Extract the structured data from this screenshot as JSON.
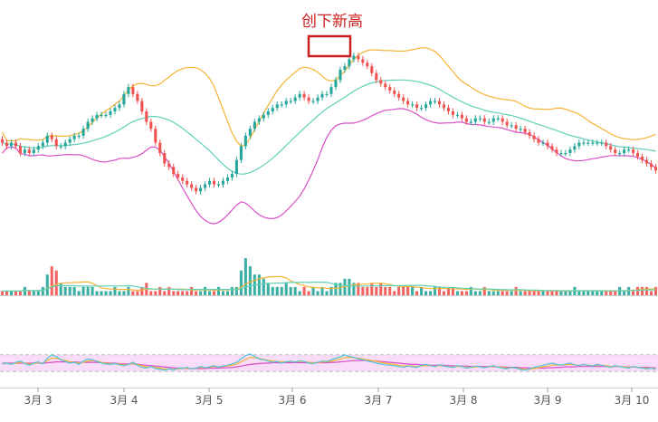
{
  "chart_data": {
    "type": "candlestick",
    "annotation": "创下新高",
    "x_ticks": [
      "3月 3",
      "3月 4",
      "3月 5",
      "3月 6",
      "3月 7",
      "3月 8",
      "3月 9",
      "3月 10"
    ],
    "colors": {
      "up": "#26a69a",
      "down": "#ef5350",
      "bb_upper": "#f5b335",
      "bb_middle": "#5fd1b8",
      "bb_lower": "#d94fc9",
      "rsi_band": "#f5d0f5",
      "rsi_fast": "#4fc3d9",
      "rsi_mid": "#f5b335",
      "rsi_slow": "#d94fc9",
      "annotation": "#cc1f1f"
    },
    "candles": {
      "open": [
        200,
        199,
        198,
        199,
        198,
        196,
        197,
        196,
        197,
        198,
        199,
        201,
        200,
        198,
        198,
        199,
        200,
        201,
        201,
        203,
        205,
        206,
        207,
        207,
        207,
        208,
        209,
        210,
        213,
        215,
        213,
        211,
        208,
        205,
        203,
        199,
        196,
        193,
        192,
        190,
        189,
        188,
        187,
        186,
        185,
        186,
        187,
        188,
        187,
        187,
        188,
        189,
        190,
        194,
        198,
        201,
        203,
        205,
        206,
        207,
        208,
        209,
        210,
        210,
        211,
        211,
        212,
        213,
        212,
        211,
        211,
        212,
        213,
        213,
        215,
        217,
        220,
        221,
        223,
        224,
        223,
        222,
        221,
        219,
        217,
        216,
        215,
        214,
        213,
        212,
        211,
        210,
        210,
        209,
        209,
        210,
        211,
        211,
        210,
        209,
        208,
        207,
        207,
        206,
        205,
        205,
        206,
        206,
        205,
        205,
        206,
        206,
        205,
        204,
        204,
        203,
        203,
        202,
        201,
        200,
        199,
        199,
        198,
        197,
        196,
        196,
        196,
        197,
        198,
        199,
        199,
        199,
        199,
        199,
        199,
        198,
        197,
        196,
        196,
        197,
        197,
        196,
        195,
        194,
        193,
        192
      ],
      "close": [
        199,
        198,
        199,
        198,
        196,
        197,
        196,
        197,
        198,
        199,
        201,
        200,
        198,
        198,
        199,
        200,
        201,
        201,
        203,
        205,
        206,
        207,
        207,
        207,
        208,
        209,
        210,
        213,
        215,
        213,
        211,
        208,
        205,
        203,
        199,
        196,
        193,
        192,
        190,
        189,
        188,
        187,
        186,
        185,
        186,
        187,
        188,
        187,
        187,
        188,
        189,
        190,
        194,
        198,
        201,
        203,
        205,
        206,
        207,
        208,
        209,
        210,
        210,
        211,
        211,
        212,
        213,
        212,
        211,
        211,
        212,
        213,
        213,
        215,
        217,
        220,
        221,
        223,
        224,
        223,
        222,
        221,
        219,
        217,
        216,
        215,
        214,
        213,
        212,
        211,
        210,
        210,
        209,
        209,
        210,
        211,
        211,
        210,
        209,
        208,
        207,
        207,
        206,
        205,
        205,
        206,
        206,
        205,
        205,
        206,
        206,
        205,
        204,
        204,
        203,
        203,
        202,
        201,
        200,
        199,
        199,
        198,
        197,
        196,
        196,
        196,
        197,
        198,
        199,
        199,
        199,
        199,
        199,
        199,
        198,
        197,
        196,
        196,
        197,
        197,
        196,
        195,
        194,
        193,
        192,
        191
      ]
    },
    "volume": [
      1,
      1,
      1,
      1,
      1,
      2,
      1,
      1,
      1,
      2,
      5,
      7,
      6,
      3,
      2,
      2,
      2,
      1,
      2,
      2,
      2,
      1,
      1,
      1,
      1,
      2,
      1,
      1,
      2,
      1,
      1,
      2,
      3,
      1,
      1,
      2,
      1,
      2,
      1,
      1,
      1,
      1,
      2,
      1,
      1,
      2,
      1,
      1,
      2,
      1,
      1,
      2,
      2,
      6,
      9,
      7,
      5,
      5,
      4,
      3,
      2,
      2,
      2,
      3,
      2,
      2,
      1,
      2,
      1,
      2,
      1,
      2,
      1,
      2,
      3,
      3,
      4,
      4,
      3,
      3,
      2,
      2,
      3,
      2,
      3,
      2,
      2,
      1,
      2,
      2,
      2,
      2,
      1,
      2,
      1,
      1,
      2,
      2,
      1,
      2,
      2,
      1,
      1,
      1,
      2,
      1,
      1,
      2,
      1,
      1,
      1,
      1,
      1,
      1,
      2,
      1,
      1,
      1,
      1,
      1,
      1,
      1,
      1,
      1,
      1,
      1,
      1,
      2,
      1,
      1,
      1,
      1,
      1,
      1,
      1,
      1,
      1,
      2,
      1,
      2,
      1,
      2,
      2,
      2,
      1,
      2
    ],
    "rsi": {
      "fast": [
        48,
        50,
        47,
        52,
        55,
        49,
        45,
        50,
        53,
        48,
        62,
        70,
        66,
        58,
        54,
        50,
        52,
        47,
        55,
        60,
        58,
        54,
        50,
        48,
        47,
        49,
        46,
        44,
        47,
        52,
        45,
        40,
        38,
        42,
        37,
        35,
        33,
        36,
        34,
        38,
        37,
        40,
        36,
        38,
        42,
        39,
        41,
        44,
        40,
        43,
        45,
        48,
        52,
        60,
        68,
        72,
        66,
        60,
        58,
        55,
        52,
        54,
        50,
        53,
        55,
        52,
        56,
        54,
        50,
        49,
        52,
        55,
        54,
        58,
        62,
        65,
        70,
        66,
        64,
        60,
        58,
        55,
        53,
        50,
        48,
        46,
        45,
        44,
        42,
        40,
        43,
        41,
        40,
        45,
        47,
        44,
        42,
        46,
        43,
        41,
        40,
        44,
        42,
        38,
        40,
        43,
        41,
        39,
        42,
        44,
        40,
        38,
        36,
        40,
        38,
        35,
        33,
        36,
        40,
        42,
        45,
        48,
        50,
        47,
        45,
        48,
        50,
        46,
        44,
        47,
        45,
        43,
        47,
        45,
        42,
        40,
        44,
        42,
        40,
        38,
        42,
        40,
        38,
        36,
        38,
        35
      ],
      "mid": [
        49,
        49,
        48,
        50,
        52,
        50,
        48,
        49,
        51,
        50,
        56,
        62,
        62,
        59,
        56,
        53,
        52,
        50,
        52,
        55,
        56,
        55,
        52,
        50,
        49,
        49,
        48,
        46,
        47,
        49,
        47,
        44,
        41,
        42,
        40,
        38,
        36,
        36,
        35,
        36,
        37,
        38,
        37,
        38,
        40,
        39,
        40,
        42,
        41,
        42,
        43,
        45,
        48,
        53,
        59,
        64,
        63,
        61,
        59,
        57,
        55,
        54,
        53,
        53,
        54,
        53,
        54,
        54,
        52,
        51,
        51,
        53,
        53,
        55,
        57,
        60,
        63,
        64,
        63,
        62,
        60,
        58,
        56,
        54,
        52,
        50,
        48,
        47,
        45,
        44,
        44,
        43,
        42,
        43,
        44,
        44,
        43,
        44,
        43,
        42,
        41,
        42,
        42,
        40,
        40,
        41,
        41,
        40,
        41,
        42,
        41,
        40,
        38,
        39,
        38,
        37,
        35,
        35,
        37,
        39,
        41,
        43,
        45,
        46,
        45,
        46,
        47,
        46,
        45,
        46,
        45,
        44,
        45,
        45,
        44,
        42,
        43,
        42,
        41,
        40,
        41,
        40,
        39,
        38,
        38,
        37
      ],
      "slow": [
        50,
        50,
        50,
        50,
        50,
        50,
        50,
        50,
        50,
        50,
        51,
        52,
        53,
        53,
        53,
        53,
        53,
        52,
        52,
        52,
        52,
        52,
        51,
        51,
        50,
        50,
        49,
        48,
        48,
        48,
        47,
        46,
        45,
        44,
        43,
        42,
        41,
        40,
        39,
        38,
        38,
        37,
        37,
        37,
        37,
        37,
        38,
        38,
        38,
        39,
        39,
        40,
        41,
        43,
        45,
        47,
        48,
        49,
        50,
        50,
        51,
        51,
        51,
        51,
        51,
        51,
        51,
        51,
        51,
        51,
        51,
        51,
        51,
        52,
        52,
        53,
        54,
        55,
        56,
        56,
        56,
        56,
        55,
        55,
        54,
        53,
        52,
        51,
        50,
        49,
        48,
        47,
        47,
        46,
        46,
        45,
        45,
        45,
        45,
        44,
        44,
        43,
        43,
        43,
        42,
        42,
        42,
        42,
        42,
        41,
        41,
        41,
        40,
        40,
        40,
        39,
        39,
        38,
        38,
        38,
        38,
        39,
        39,
        40,
        40,
        41,
        41,
        41,
        42,
        42,
        42,
        42,
        42,
        42,
        42,
        42,
        42,
        42,
        41,
        41,
        41,
        40,
        40,
        40,
        39,
        39
      ]
    }
  }
}
